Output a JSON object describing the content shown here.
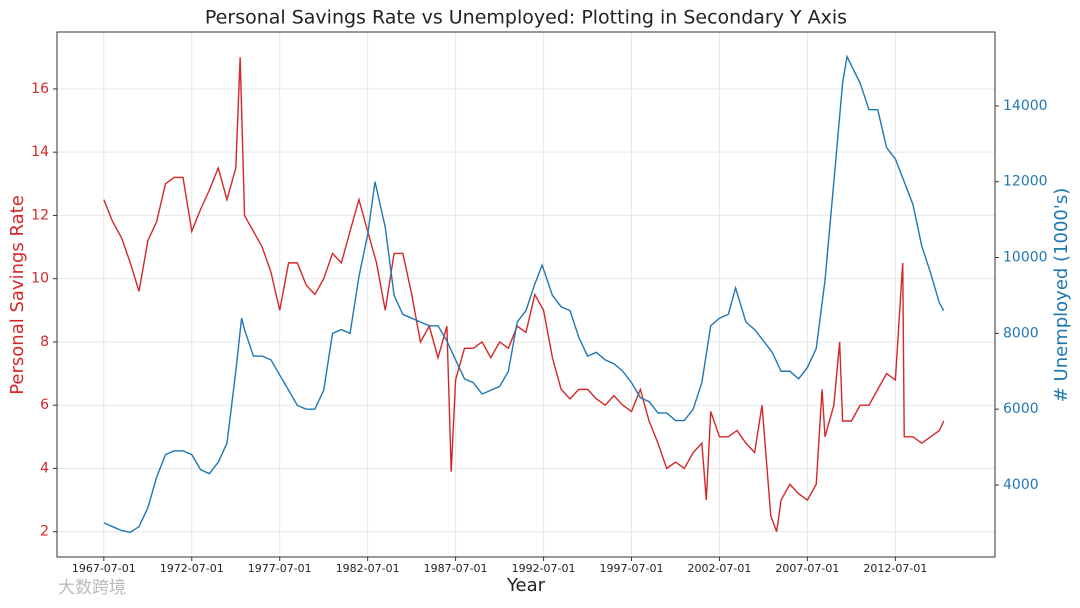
{
  "chart_data": {
    "type": "line",
    "title": "Personal Savings Rate vs Unemployed: Plotting in Secondary Y Axis",
    "xlabel": "Year",
    "ylabel": "Personal Savings Rate",
    "y2label": "# Unemployed (1000's)",
    "watermark": "大数跨境",
    "grid": true,
    "xlim": [
      "1964-11-01",
      "2018-03-01"
    ],
    "xticks": [
      "1967-07-01",
      "1972-07-01",
      "1977-07-01",
      "1982-07-01",
      "1987-07-01",
      "1992-07-01",
      "1997-07-01",
      "2002-07-01",
      "2007-07-01",
      "2012-07-01"
    ],
    "ylim": [
      1.2,
      17.8
    ],
    "yticks": [
      2,
      4,
      6,
      8,
      10,
      12,
      14,
      16
    ],
    "y2lim": [
      2100,
      15950
    ],
    "y2ticks": [
      4000,
      6000,
      8000,
      10000,
      12000,
      14000
    ],
    "series": [
      {
        "name": "Personal Savings Rate",
        "color": "#d62728",
        "axis": "y",
        "x": [
          "1967-07-01",
          "1968-01-01",
          "1968-07-01",
          "1969-01-01",
          "1969-07-01",
          "1970-01-01",
          "1970-07-01",
          "1971-01-01",
          "1971-07-01",
          "1972-01-01",
          "1972-07-01",
          "1973-01-01",
          "1973-07-01",
          "1974-01-01",
          "1974-07-01",
          "1975-01-01",
          "1975-04-01",
          "1975-07-01",
          "1976-01-01",
          "1976-07-01",
          "1977-01-01",
          "1977-07-01",
          "1978-01-01",
          "1978-07-01",
          "1979-01-01",
          "1979-07-01",
          "1980-01-01",
          "1980-07-01",
          "1981-01-01",
          "1981-07-01",
          "1982-01-01",
          "1982-07-01",
          "1983-01-01",
          "1983-07-01",
          "1984-01-01",
          "1984-07-01",
          "1985-01-01",
          "1985-07-01",
          "1986-01-01",
          "1986-07-01",
          "1987-01-01",
          "1987-04-01",
          "1987-07-01",
          "1988-01-01",
          "1988-07-01",
          "1989-01-01",
          "1989-07-01",
          "1990-01-01",
          "1990-07-01",
          "1991-01-01",
          "1991-07-01",
          "1992-01-01",
          "1992-07-01",
          "1993-01-01",
          "1993-07-01",
          "1994-01-01",
          "1994-07-01",
          "1995-01-01",
          "1995-07-01",
          "1996-01-01",
          "1996-07-01",
          "1997-01-01",
          "1997-07-01",
          "1998-01-01",
          "1998-07-01",
          "1999-01-01",
          "1999-07-01",
          "2000-01-01",
          "2000-07-01",
          "2001-01-01",
          "2001-07-01",
          "2001-10-01",
          "2002-01-01",
          "2002-07-01",
          "2003-01-01",
          "2003-07-01",
          "2004-01-01",
          "2004-07-01",
          "2004-12-01",
          "2005-06-01",
          "2005-10-01",
          "2006-01-01",
          "2006-07-01",
          "2007-01-01",
          "2007-07-01",
          "2008-01-01",
          "2008-05-01",
          "2008-07-01",
          "2009-01-01",
          "2009-05-01",
          "2009-07-01",
          "2010-01-01",
          "2010-07-01",
          "2011-01-01",
          "2011-07-01",
          "2012-01-01",
          "2012-07-01",
          "2012-12-01",
          "2013-01-01",
          "2013-07-01",
          "2014-01-01",
          "2014-07-01",
          "2015-01-01",
          "2015-04-01"
        ],
        "values": [
          12.5,
          11.8,
          11.3,
          10.5,
          9.6,
          11.2,
          11.8,
          13.0,
          13.2,
          13.2,
          11.5,
          12.2,
          12.8,
          13.5,
          12.5,
          13.5,
          17.0,
          12.0,
          11.5,
          11.0,
          10.2,
          9.0,
          10.5,
          10.5,
          9.8,
          9.5,
          10.0,
          10.8,
          10.5,
          11.5,
          12.5,
          11.5,
          10.5,
          9.0,
          10.8,
          10.8,
          9.5,
          8.0,
          8.5,
          7.5,
          8.5,
          3.9,
          6.8,
          7.8,
          7.8,
          8.0,
          7.5,
          8.0,
          7.8,
          8.5,
          8.3,
          9.5,
          9.0,
          7.5,
          6.5,
          6.2,
          6.5,
          6.5,
          6.2,
          6.0,
          6.3,
          6.0,
          5.8,
          6.5,
          5.5,
          4.8,
          4.0,
          4.2,
          4.0,
          4.5,
          4.8,
          3.0,
          5.8,
          5.0,
          5.0,
          5.2,
          4.8,
          4.5,
          6.0,
          2.5,
          2.0,
          3.0,
          3.5,
          3.2,
          3.0,
          3.5,
          6.5,
          5.0,
          6.0,
          8.0,
          5.5,
          5.5,
          6.0,
          6.0,
          6.5,
          7.0,
          6.8,
          10.5,
          5.0,
          5.0,
          4.8,
          5.0,
          5.2,
          5.5
        ]
      },
      {
        "name": "# Unemployed (1000's)",
        "color": "#1f77b4",
        "axis": "y2",
        "x": [
          "1967-07-01",
          "1968-01-01",
          "1968-07-01",
          "1969-01-01",
          "1969-07-01",
          "1970-01-01",
          "1970-07-01",
          "1971-01-01",
          "1971-07-01",
          "1972-01-01",
          "1972-07-01",
          "1973-01-01",
          "1973-07-01",
          "1974-01-01",
          "1974-07-01",
          "1975-01-01",
          "1975-05-01",
          "1975-07-01",
          "1976-01-01",
          "1976-07-01",
          "1977-01-01",
          "1977-07-01",
          "1978-01-01",
          "1978-07-01",
          "1979-01-01",
          "1979-07-01",
          "1980-01-01",
          "1980-07-01",
          "1981-01-01",
          "1981-07-01",
          "1982-01-01",
          "1982-07-01",
          "1982-12-01",
          "1983-07-01",
          "1984-01-01",
          "1984-07-01",
          "1985-01-01",
          "1985-07-01",
          "1986-01-01",
          "1986-07-01",
          "1987-01-01",
          "1987-07-01",
          "1988-01-01",
          "1988-07-01",
          "1989-01-01",
          "1989-07-01",
          "1990-01-01",
          "1990-07-01",
          "1991-01-01",
          "1991-07-01",
          "1992-01-01",
          "1992-06-01",
          "1993-01-01",
          "1993-07-01",
          "1994-01-01",
          "1994-07-01",
          "1995-01-01",
          "1995-07-01",
          "1996-01-01",
          "1996-07-01",
          "1997-01-01",
          "1997-07-01",
          "1998-01-01",
          "1998-07-01",
          "1999-01-01",
          "1999-07-01",
          "2000-01-01",
          "2000-07-01",
          "2001-01-01",
          "2001-07-01",
          "2002-01-01",
          "2002-07-01",
          "2003-01-01",
          "2003-06-01",
          "2004-01-01",
          "2004-07-01",
          "2005-01-01",
          "2005-07-01",
          "2006-01-01",
          "2006-07-01",
          "2007-01-01",
          "2007-07-01",
          "2008-01-01",
          "2008-07-01",
          "2009-01-01",
          "2009-07-01",
          "2009-10-01",
          "2010-07-01",
          "2011-01-01",
          "2011-07-01",
          "2012-01-01",
          "2012-07-01",
          "2013-01-01",
          "2013-07-01",
          "2014-01-01",
          "2014-07-01",
          "2015-01-01",
          "2015-04-01"
        ],
        "values": [
          3000,
          2900,
          2800,
          2750,
          2900,
          3400,
          4200,
          4800,
          4900,
          4900,
          4800,
          4400,
          4300,
          4600,
          5100,
          7000,
          8400,
          8100,
          7400,
          7400,
          7300,
          6900,
          6500,
          6100,
          6000,
          6000,
          6500,
          8000,
          8100,
          8000,
          9500,
          10600,
          12000,
          10800,
          9000,
          8500,
          8400,
          8300,
          8200,
          8200,
          7800,
          7300,
          6800,
          6700,
          6400,
          6500,
          6600,
          7000,
          8300,
          8600,
          9300,
          9800,
          9000,
          8700,
          8600,
          7900,
          7400,
          7500,
          7300,
          7200,
          7000,
          6700,
          6300,
          6200,
          5900,
          5900,
          5700,
          5700,
          6000,
          6700,
          8200,
          8400,
          8500,
          9200,
          8300,
          8100,
          7800,
          7500,
          7000,
          7000,
          6800,
          7100,
          7600,
          9400,
          12000,
          14600,
          15300,
          14600,
          13900,
          13900,
          12900,
          12600,
          12000,
          11400,
          10300,
          9600,
          8800,
          8600
        ]
      }
    ]
  }
}
